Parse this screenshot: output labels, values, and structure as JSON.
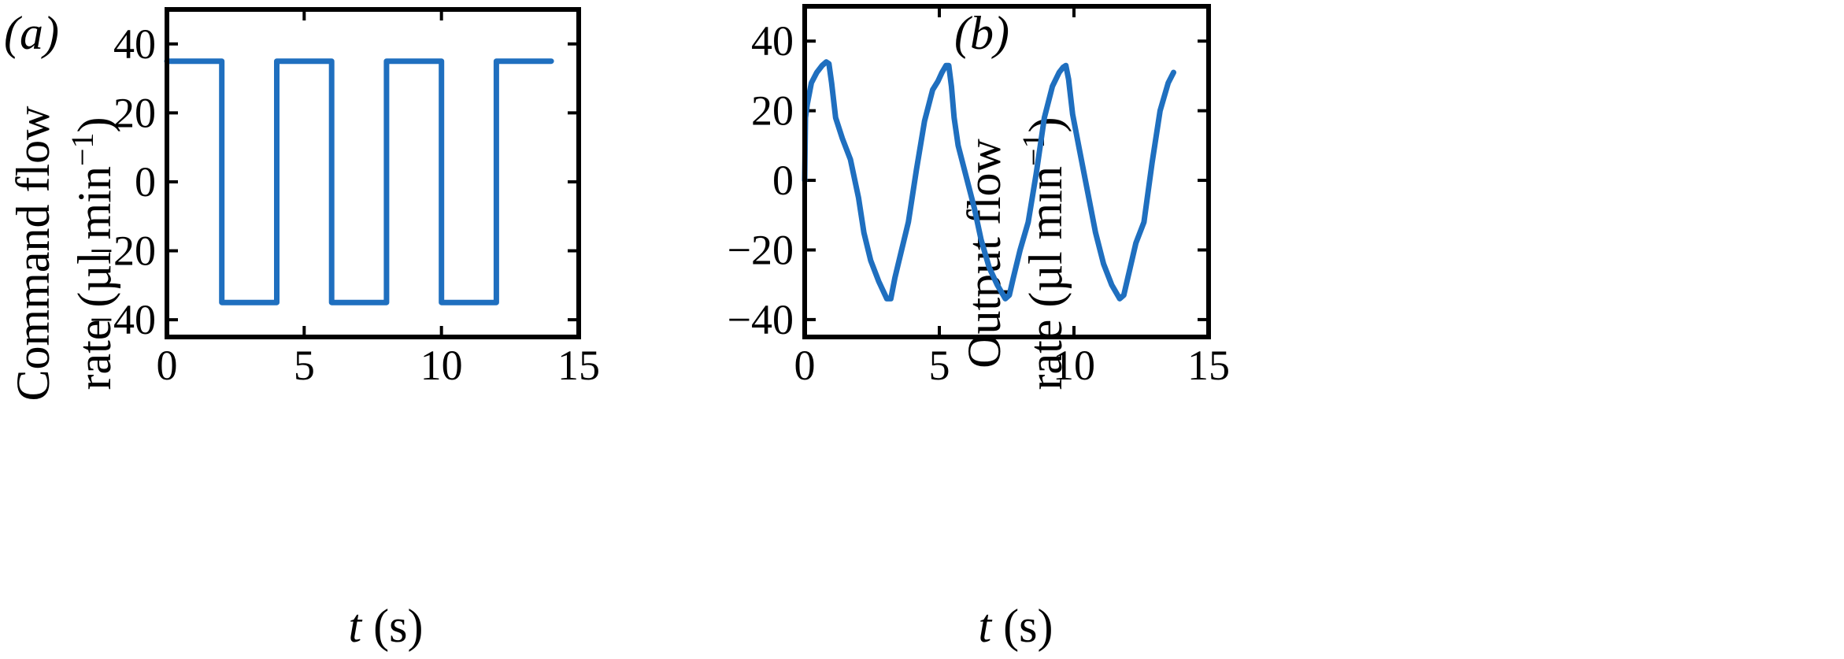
{
  "chart_data": [
    {
      "type": "line",
      "panel_label": "(a)",
      "xlabel": "t (s)",
      "ylabel_line1": "Command flow",
      "ylabel_line2": "rate (µl min",
      "ylabel_sup": "−1",
      "ylabel_close": ")",
      "xlim": [
        0,
        15
      ],
      "ylim": [
        -45,
        50
      ],
      "xticks": [
        0,
        5,
        10,
        15
      ],
      "yticks": [
        -40,
        -20,
        0,
        20,
        40
      ],
      "xtick_labels": [
        "0",
        "5",
        "10",
        "15"
      ],
      "ytick_labels": [
        "−40",
        "−20",
        "0",
        "20",
        "40"
      ],
      "color": "#1f6fbf",
      "series": [
        {
          "x": [
            0,
            2,
            2,
            4,
            4,
            6,
            6,
            8,
            8,
            10,
            10,
            12,
            12,
            14
          ],
          "y": [
            35,
            35,
            -35,
            -35,
            35,
            35,
            -35,
            -35,
            35,
            35,
            -35,
            -35,
            35,
            35
          ]
        }
      ]
    },
    {
      "type": "line",
      "panel_label": "(b)",
      "xlabel": "t (s)",
      "ylabel_line1": "Output flow",
      "ylabel_line2": "rate (µl min",
      "ylabel_sup": "−1",
      "ylabel_close": ")",
      "xlim": [
        0,
        15
      ],
      "ylim": [
        -45,
        50
      ],
      "xticks": [
        0,
        5,
        10,
        15
      ],
      "yticks": [
        -40,
        -20,
        0,
        20,
        40
      ],
      "xtick_labels": [
        "0",
        "5",
        "10",
        "15"
      ],
      "ytick_labels": [
        "−40",
        "−20",
        "0",
        "20",
        "40"
      ],
      "color": "#1f6fbf",
      "series": [
        {
          "x": [
            0,
            0.03,
            0.1,
            0.25,
            0.45,
            0.65,
            0.8,
            0.9,
            1.0,
            1.15,
            1.4,
            1.7,
            2.0,
            2.2,
            2.45,
            2.75,
            3.05,
            3.2,
            3.35,
            3.6,
            3.85,
            4.15,
            4.45,
            4.75,
            4.95,
            5.1,
            5.25,
            5.35,
            5.45,
            5.55,
            5.7,
            6.0,
            6.3,
            6.55,
            6.85,
            7.15,
            7.45,
            7.6,
            7.75,
            8.0,
            8.3,
            8.6,
            8.9,
            9.2,
            9.45,
            9.6,
            9.7,
            9.8,
            9.95,
            10.2,
            10.5,
            10.8,
            11.1,
            11.4,
            11.7,
            11.85,
            12.0,
            12.3,
            12.6,
            12.9,
            13.2,
            13.5,
            13.7
          ],
          "y": [
            0,
            18,
            22,
            28,
            31,
            33,
            34,
            33.5,
            28,
            18,
            12,
            6,
            -5,
            -15,
            -23,
            -29,
            -34,
            -34,
            -28,
            -20,
            -12,
            3,
            17,
            26,
            28.5,
            31,
            33,
            33,
            27,
            18,
            10,
            1,
            -8,
            -17,
            -25,
            -30,
            -34,
            -33,
            -28,
            -20,
            -12,
            2,
            18,
            27,
            31,
            32.5,
            33,
            29,
            19,
            9,
            -3,
            -15,
            -24,
            -30,
            -34,
            -33,
            -28,
            -18,
            -12,
            5,
            20,
            28,
            31
          ]
        }
      ]
    }
  ]
}
